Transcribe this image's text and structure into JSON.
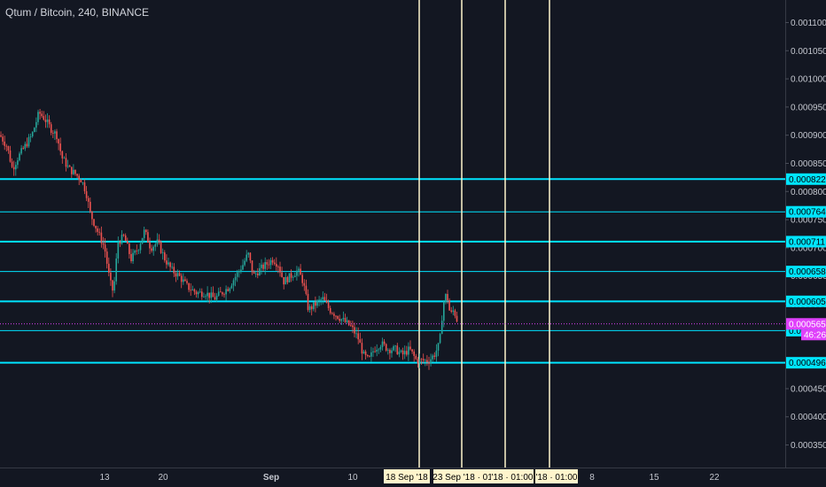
{
  "header": {
    "title": "Qtum / Bitcoin, 240, BINANCE"
  },
  "colors": {
    "background": "#131722",
    "up": "#26a69a",
    "down": "#ef5350",
    "level_line": "#00e5ff",
    "vertical_line": "#fff5cc",
    "current_price": "#e040fb",
    "axis_text": "#c4c7cf"
  },
  "chart_data": {
    "type": "candlestick",
    "symbol": "Qtum / Bitcoin",
    "interval": "240",
    "exchange": "BINANCE",
    "ylim": [
      0.00031,
      0.00114
    ],
    "y_ticks": [
      "0.001100",
      "0.001050",
      "0.001000",
      "0.000950",
      "0.000900",
      "0.000850",
      "0.000800",
      "0.000750",
      "0.000700",
      "0.000650",
      "0.000600",
      "0.000550",
      "0.000450",
      "0.000400",
      "0.000350"
    ],
    "x_ticks": [
      {
        "label": "13",
        "t": 118
      },
      {
        "label": "20",
        "t": 184
      },
      {
        "label": "Sep",
        "t": 306
      },
      {
        "label": "10",
        "t": 398
      },
      {
        "label": "8",
        "t": 668
      },
      {
        "label": "15",
        "t": 738
      },
      {
        "label": "22",
        "t": 806
      }
    ],
    "levels": [
      {
        "value": 0.000822,
        "label": "0.000822",
        "width": 2
      },
      {
        "value": 0.000764,
        "label": "0.000764",
        "width": 1
      },
      {
        "value": 0.000711,
        "label": "0.000711",
        "width": 2
      },
      {
        "value": 0.000658,
        "label": "0.000658",
        "width": 1
      },
      {
        "value": 0.000605,
        "label": "0.000605",
        "width": 2
      },
      {
        "value": 0.000553,
        "label": "0.000553",
        "width": 1
      },
      {
        "value": 0.000496,
        "label": "0.000496",
        "width": 2
      }
    ],
    "current_price": {
      "value": 0.000565,
      "label": "0.000565",
      "countdown": "46:26"
    },
    "vertical_markers": [
      {
        "t": 473,
        "label": "18 Sep '18"
      },
      {
        "t": 521,
        "label": "23 Sep '18 · 01:00"
      },
      {
        "t": 570,
        "label": "'18 · 01:00"
      },
      {
        "t": 620,
        "label": "'18 · 01:00"
      }
    ],
    "price_path": [
      [
        0,
        0.0009
      ],
      [
        8,
        0.00088
      ],
      [
        14,
        0.00084
      ],
      [
        20,
        0.00086
      ],
      [
        28,
        0.00088
      ],
      [
        36,
        0.0009
      ],
      [
        44,
        0.00094
      ],
      [
        50,
        0.00093
      ],
      [
        58,
        0.00091
      ],
      [
        64,
        0.0009
      ],
      [
        70,
        0.00086
      ],
      [
        78,
        0.00084
      ],
      [
        86,
        0.00083
      ],
      [
        92,
        0.00082
      ],
      [
        97,
        0.0008
      ],
      [
        102,
        0.00076
      ],
      [
        110,
        0.00073
      ],
      [
        118,
        0.0007
      ],
      [
        124,
        0.00064
      ],
      [
        128,
        0.00062
      ],
      [
        133,
        0.00071
      ],
      [
        140,
        0.00072
      ],
      [
        148,
        0.00068
      ],
      [
        156,
        0.0007
      ],
      [
        163,
        0.00073
      ],
      [
        170,
        0.0007
      ],
      [
        178,
        0.00071
      ],
      [
        186,
        0.00068
      ],
      [
        194,
        0.00066
      ],
      [
        202,
        0.00065
      ],
      [
        212,
        0.00063
      ],
      [
        222,
        0.00062
      ],
      [
        232,
        0.00062
      ],
      [
        242,
        0.00061
      ],
      [
        250,
        0.00062
      ],
      [
        258,
        0.00063
      ],
      [
        266,
        0.00065
      ],
      [
        274,
        0.00067
      ],
      [
        280,
        0.00069
      ],
      [
        286,
        0.00065
      ],
      [
        292,
        0.00066
      ],
      [
        300,
        0.00067
      ],
      [
        308,
        0.00068
      ],
      [
        314,
        0.00067
      ],
      [
        320,
        0.00064
      ],
      [
        328,
        0.00065
      ],
      [
        336,
        0.00066
      ],
      [
        342,
        0.00064
      ],
      [
        348,
        0.00059
      ],
      [
        356,
        0.0006
      ],
      [
        364,
        0.00061
      ],
      [
        372,
        0.00059
      ],
      [
        380,
        0.00058
      ],
      [
        388,
        0.00057
      ],
      [
        396,
        0.00056
      ],
      [
        404,
        0.00054
      ],
      [
        410,
        0.00051
      ],
      [
        416,
        0.0005
      ],
      [
        422,
        0.00052
      ],
      [
        430,
        0.00053
      ],
      [
        438,
        0.00052
      ],
      [
        446,
        0.00052
      ],
      [
        454,
        0.00051
      ],
      [
        462,
        0.00052
      ],
      [
        470,
        0.0005
      ],
      [
        476,
        0.0005
      ],
      [
        484,
        0.0005
      ],
      [
        490,
        0.00051
      ],
      [
        496,
        0.00053
      ],
      [
        500,
        0.0006
      ],
      [
        504,
        0.00062
      ],
      [
        508,
        0.00058
      ],
      [
        512,
        0.00059
      ],
      [
        516,
        0.00057
      ]
    ]
  }
}
